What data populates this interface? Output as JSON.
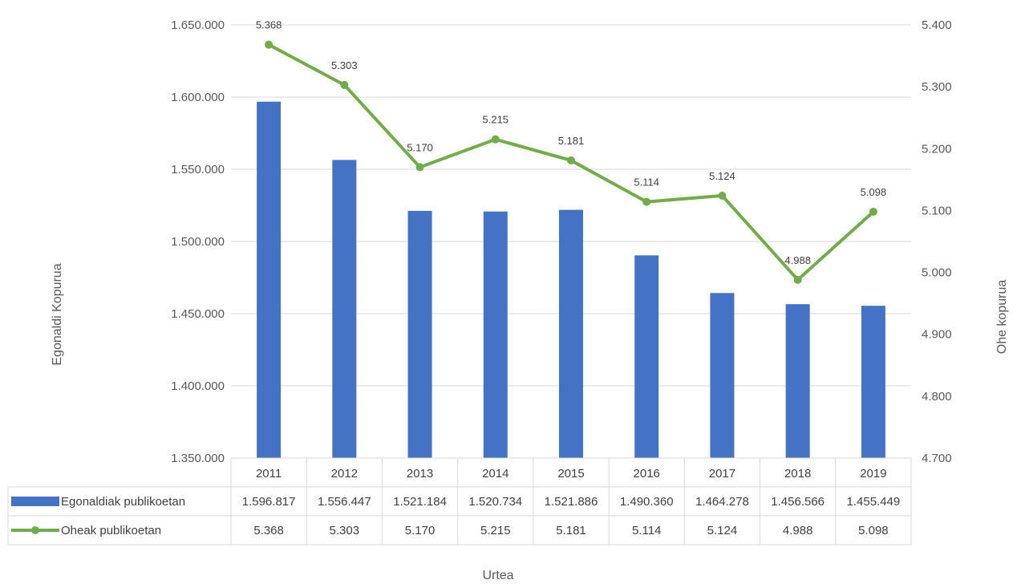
{
  "chart_data": {
    "type": "bar+line",
    "categories": [
      "2011",
      "2012",
      "2013",
      "2014",
      "2015",
      "2016",
      "2017",
      "2018",
      "2019"
    ],
    "series": [
      {
        "name": "Egonaldiak publikoetan",
        "type": "bar",
        "axis": "left",
        "color": "#4472C4",
        "values": [
          1596817,
          1556447,
          1521184,
          1520734,
          1521886,
          1490360,
          1464278,
          1456566,
          1455449
        ],
        "labels": [
          "1.596.817",
          "1.556.447",
          "1.521.184",
          "1.520.734",
          "1.521.886",
          "1.490.360",
          "1.464.278",
          "1.456.566",
          "1.455.449"
        ]
      },
      {
        "name": "Oheak publikoetan",
        "type": "line",
        "axis": "right",
        "color": "#70AD47",
        "values": [
          5368,
          5303,
          5170,
          5215,
          5181,
          5114,
          5124,
          4988,
          5098
        ],
        "labels": [
          "5.368",
          "5.303",
          "5.170",
          "5.215",
          "5.181",
          "5.114",
          "5.124",
          "4.988",
          "5.098"
        ]
      }
    ],
    "xlabel": "Urtea",
    "ylabel_left": "Egonaldi Kopurua",
    "ylabel_right": "Ohe kopurua",
    "ylim_left": [
      1350000,
      1650000
    ],
    "ylim_right": [
      4700,
      5400
    ],
    "left_ticks": [
      "1.350.000",
      "1.400.000",
      "1.450.000",
      "1.500.000",
      "1.550.000",
      "1.600.000",
      "1.650.000"
    ],
    "right_ticks": [
      "4.700",
      "4.800",
      "4.900",
      "5.000",
      "5.100",
      "5.200",
      "5.300",
      "5.400"
    ],
    "grid": true,
    "legend": "data-table"
  }
}
